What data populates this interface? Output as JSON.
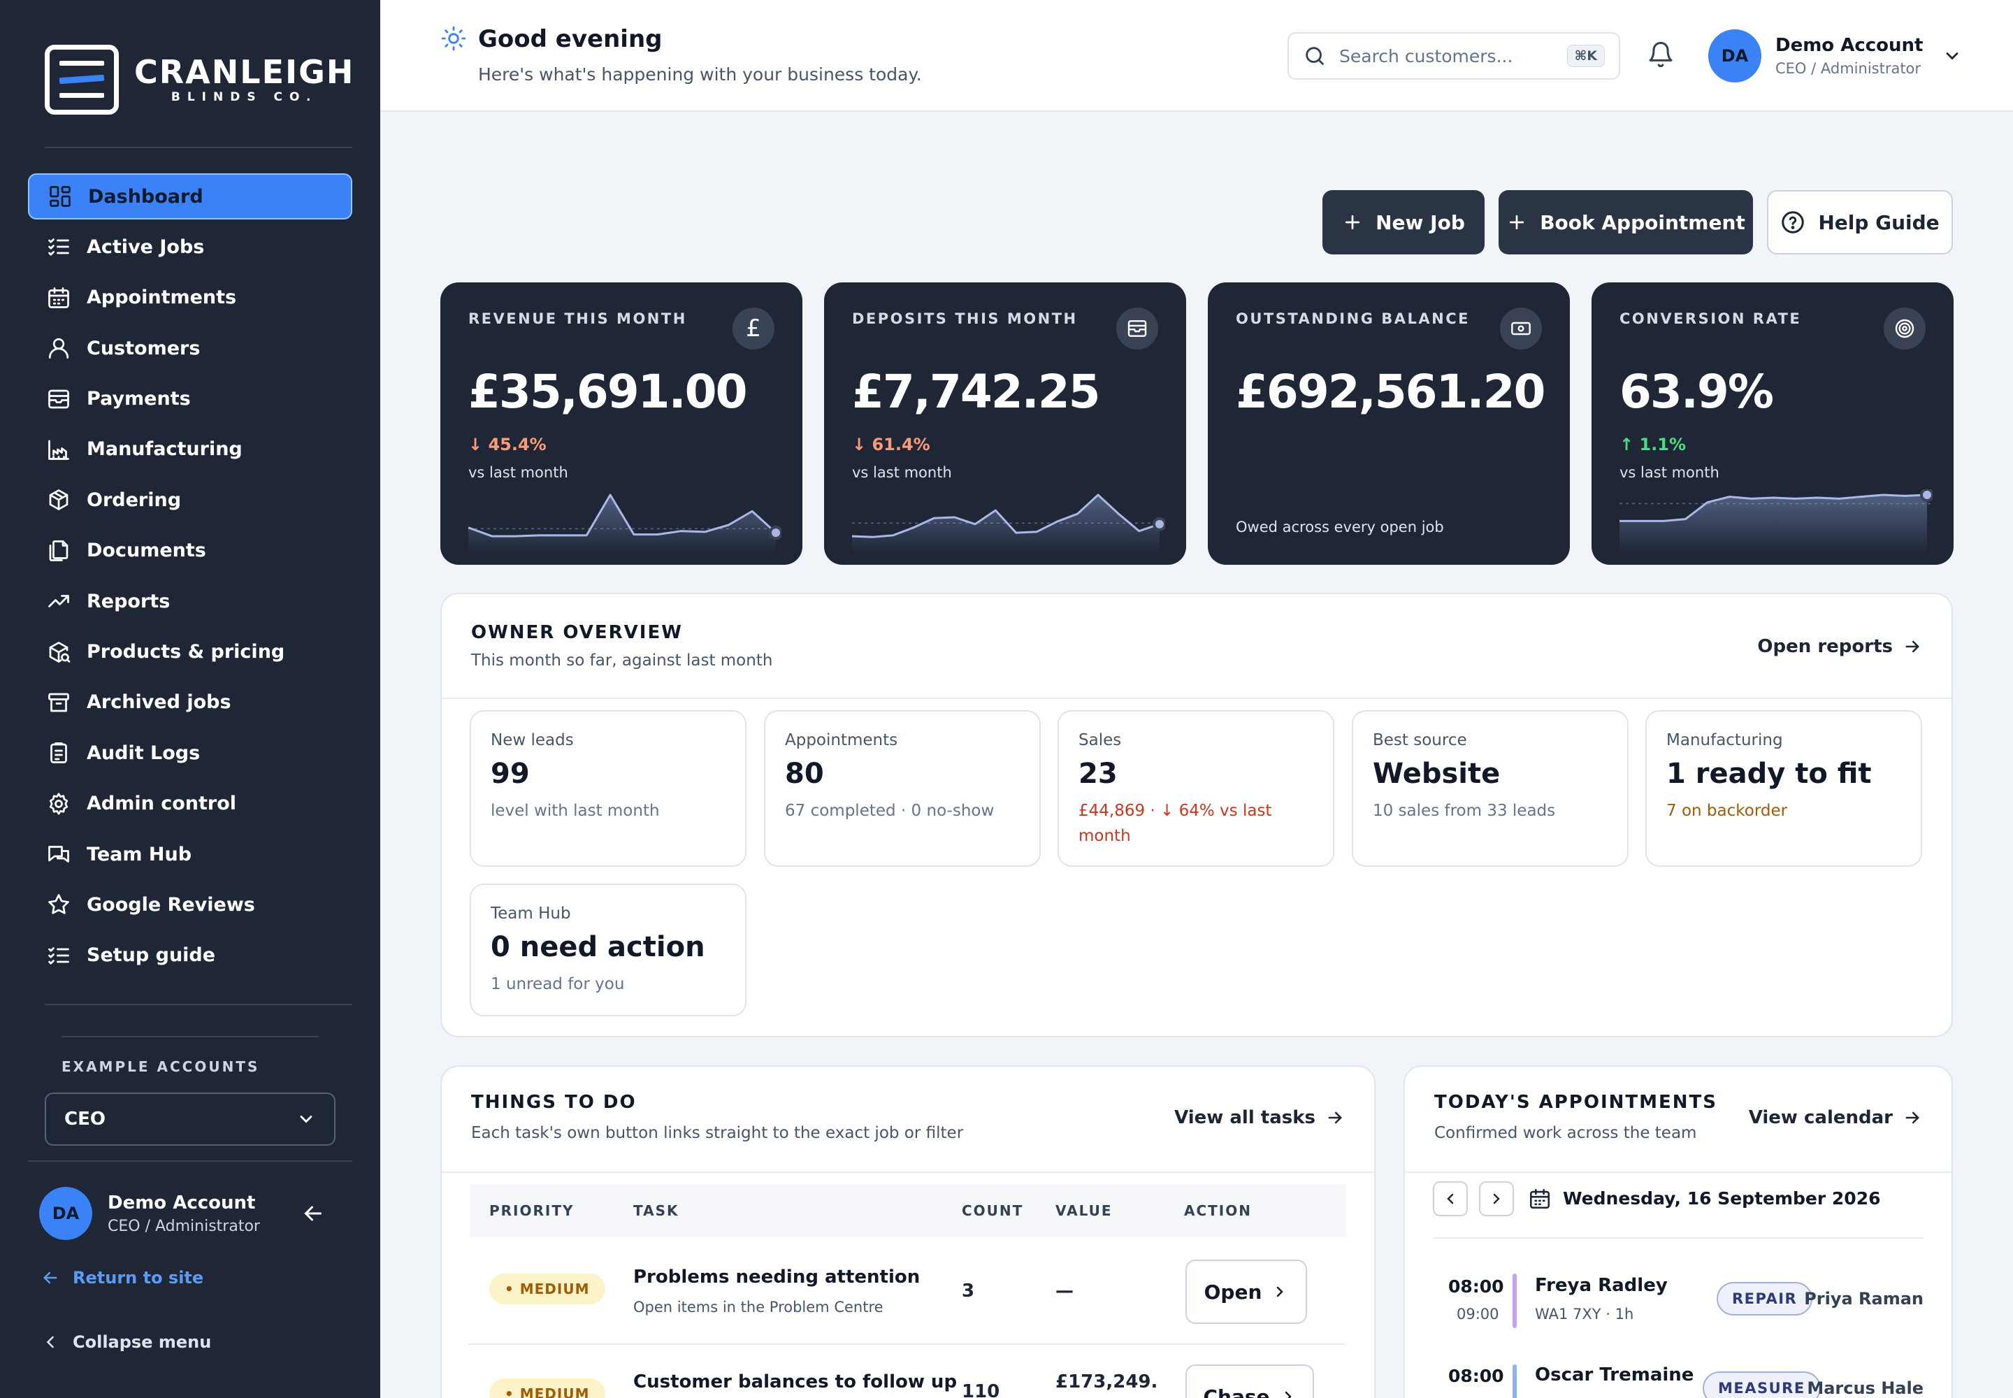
{
  "brand": {
    "name": "CRANLEIGH",
    "sub": "BLINDS CO."
  },
  "sidebar": {
    "items": [
      {
        "label": "Dashboard",
        "icon": "dashboard-icon"
      },
      {
        "label": "Active Jobs",
        "icon": "checklist-icon"
      },
      {
        "label": "Appointments",
        "icon": "calendar-icon"
      },
      {
        "label": "Customers",
        "icon": "user-icon"
      },
      {
        "label": "Payments",
        "icon": "wallet-icon"
      },
      {
        "label": "Manufacturing",
        "icon": "factory-icon"
      },
      {
        "label": "Ordering",
        "icon": "package-icon"
      },
      {
        "label": "Documents",
        "icon": "documents-icon"
      },
      {
        "label": "Reports",
        "icon": "trending-icon"
      },
      {
        "label": "Products & pricing",
        "icon": "package-search-icon"
      },
      {
        "label": "Archived jobs",
        "icon": "archive-icon"
      },
      {
        "label": "Audit Logs",
        "icon": "clipboard-icon"
      },
      {
        "label": "Admin control",
        "icon": "gear-icon"
      },
      {
        "label": "Team Hub",
        "icon": "chat-icon"
      },
      {
        "label": "Google Reviews",
        "icon": "star-icon"
      },
      {
        "label": "Setup guide",
        "icon": "checklist-icon"
      }
    ],
    "example_label": "EXAMPLE ACCOUNTS",
    "example_value": "CEO",
    "user": {
      "initials": "DA",
      "name": "Demo Account",
      "role": "CEO / Administrator"
    },
    "return_label": "Return to site",
    "collapse_label": "Collapse menu"
  },
  "header": {
    "greeting": "Good evening",
    "subtitle": "Here's what's happening with your business today.",
    "search_placeholder": "Search customers...",
    "search_shortcut": "⌘K",
    "user": {
      "initials": "DA",
      "name": "Demo Account",
      "role": "CEO / Administrator"
    }
  },
  "actions": {
    "new_job": "New Job",
    "book": "Book Appointment",
    "help": "Help Guide"
  },
  "kpis": [
    {
      "title": "REVENUE THIS MONTH",
      "value": "£35,691.00",
      "delta": "↓ 45.4%",
      "sub": "vs last month",
      "trend": [
        14,
        4,
        4,
        5,
        5,
        5,
        52,
        6,
        6,
        10,
        9,
        17,
        33,
        8
      ]
    },
    {
      "title": "DEPOSITS THIS MONTH",
      "value": "£7,742.25",
      "delta": "↓ 61.4%",
      "sub": "vs last month",
      "trend": [
        4,
        3,
        5,
        14,
        25,
        26,
        18,
        34,
        8,
        9,
        21,
        30,
        52,
        30,
        10,
        18
      ]
    },
    {
      "title": "OUTSTANDING BALANCE",
      "value": "£692,561.20",
      "sub": "Owed across every open job"
    },
    {
      "title": "CONVERSION RATE",
      "value": "63.9%",
      "delta": "↑ 1.1%",
      "sub": "vs last month",
      "trend": [
        20,
        20,
        20,
        22,
        40,
        46,
        44,
        45,
        44,
        45,
        44,
        46,
        48,
        47,
        48
      ]
    }
  ],
  "colors": {
    "accent": "#3b82f6",
    "sidebar": "#1f2737",
    "danger": "#c8371e",
    "success": "#4ade80"
  },
  "overview": {
    "title": "OWNER OVERVIEW",
    "subtitle": "This month so far, against last month",
    "link": "Open reports",
    "cards": [
      {
        "label": "New leads",
        "value": "99",
        "sub": "level with last month"
      },
      {
        "label": "Appointments",
        "value": "80",
        "sub": "67 completed · 0 no-show"
      },
      {
        "label": "Sales",
        "value": "23",
        "sub": "£44,869 · ↓ 64% vs last month"
      },
      {
        "label": "Best source",
        "value": "Website",
        "sub": "10 sales from 33 leads"
      },
      {
        "label": "Manufacturing",
        "value": "1 ready to fit",
        "sub": "7 on backorder"
      },
      {
        "label": "Team Hub",
        "value": "0 need action",
        "sub": "1 unread for you"
      }
    ]
  },
  "tasks": {
    "title": "THINGS TO DO",
    "subtitle": "Each task's own button links straight to the exact job or filter",
    "link": "View all tasks",
    "columns": [
      "PRIORITY",
      "TASK",
      "COUNT",
      "VALUE",
      "ACTION"
    ],
    "rows": [
      {
        "priority": "• MEDIUM",
        "task": "Problems needing attention",
        "desc": "Open items in the Problem Centre",
        "count": "3",
        "value": "—",
        "action": "Open"
      },
      {
        "priority": "• MEDIUM",
        "task": "Customer balances to follow up",
        "desc": "",
        "count": "110",
        "value": "£173,249.",
        "action": "Chase"
      }
    ]
  },
  "appointments": {
    "title": "TODAY'S APPOINTMENTS",
    "subtitle": "Confirmed work across the team",
    "link": "View calendar",
    "date": "Wednesday, 16 September 2026",
    "items": [
      {
        "start": "08:00",
        "end": "09:00",
        "name": "Freya Radley",
        "detail": "WA1 7XY · 1h",
        "type": "REPAIR",
        "staff": "Priya Raman",
        "color": "#c4a2f0"
      },
      {
        "start": "08:00",
        "end": "",
        "name": "Oscar Tremaine",
        "detail": "",
        "type": "MEASURE",
        "staff": "Marcus Hale",
        "color": "#93b4e8"
      }
    ]
  }
}
